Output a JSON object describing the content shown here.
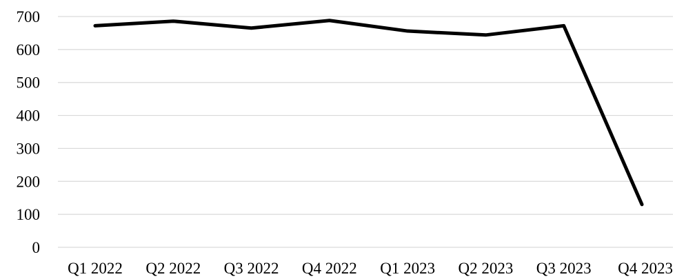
{
  "chart_data": {
    "type": "line",
    "title": "",
    "xlabel": "",
    "ylabel": "",
    "categories": [
      "Q1 2022",
      "Q2 2022",
      "Q3 2022",
      "Q4 2022",
      "Q1 2023",
      "Q2 2023",
      "Q3 2023",
      "Q4 2023"
    ],
    "series": [
      {
        "values": [
          672,
          686,
          665,
          688,
          656,
          644,
          672,
          130
        ],
        "color": "#000000"
      }
    ],
    "ylim": [
      0,
      700
    ],
    "yticks": [
      0,
      100,
      200,
      300,
      400,
      500,
      600,
      700
    ],
    "grid": true,
    "legend": "none"
  }
}
